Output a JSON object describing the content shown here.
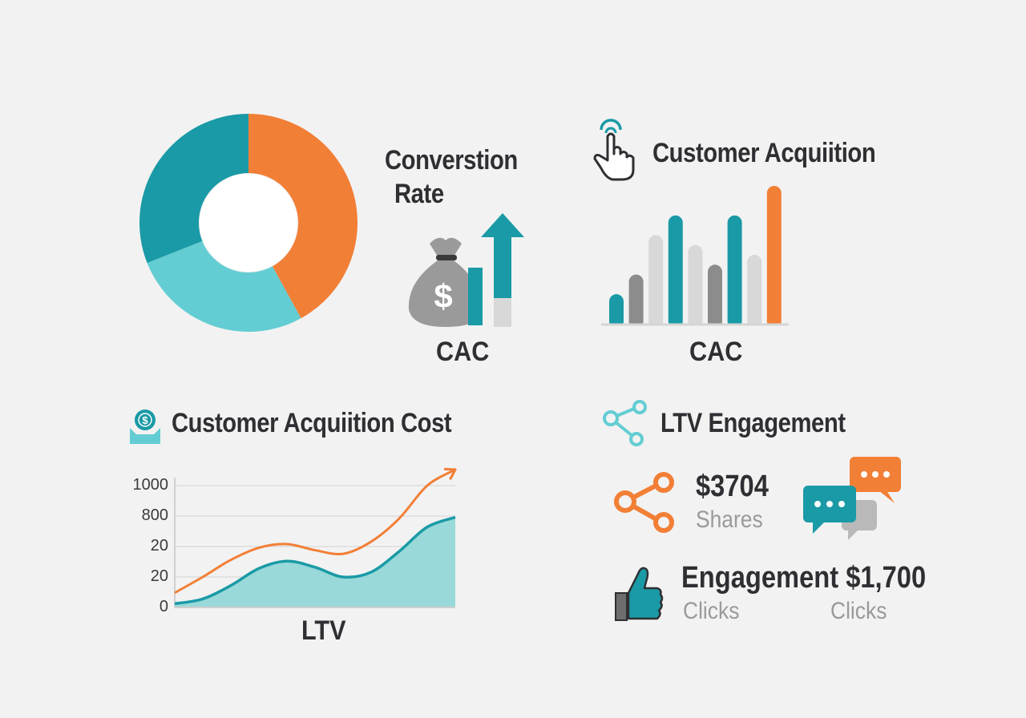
{
  "colors": {
    "orange": "#f27f36",
    "teal": "#1a9aa6",
    "light_teal": "#63cdd3",
    "gray": "#9a9a9a",
    "light_gray": "#d8d8d8",
    "text": "#2f2f33"
  },
  "donut": {
    "title_line1": "Converstion",
    "title_line2": "Rate"
  },
  "money_block": {
    "label": "CAC",
    "icon": "money-bag-icon",
    "arrow_icon": "up-arrow-icon"
  },
  "acquisition": {
    "title": "Customer Acquiition",
    "icon": "pointing-hand-icon",
    "label": "CAC"
  },
  "cost": {
    "title": "Customer Acquiition Cost",
    "icon": "wallet-coin-icon",
    "xlabel": "LTV"
  },
  "ltv": {
    "title": "LTV Engagement",
    "title_icon": "share-network-icon",
    "shares_value": "$3704",
    "shares_label": "Shares",
    "share_icon": "share-icon",
    "chat_icon": "chat-bubbles-icon",
    "engagement_value": "Engagement $1,700",
    "clicks_label_1": "Clicks",
    "clicks_label_2": "Clicks",
    "thumb_icon": "thumbs-up-icon"
  },
  "chart_data": [
    {
      "type": "pie",
      "donut": true,
      "values": [
        42,
        27,
        31
      ],
      "colors": [
        "#f27f36",
        "#63cdd3",
        "#1a9aa6"
      ]
    },
    {
      "type": "bar",
      "values": [
        3,
        5,
        9,
        11,
        8,
        6,
        11,
        7,
        14
      ],
      "colors": [
        "#1a9aa6",
        "#8c8c8c",
        "#d8d8d8",
        "#1a9aa6",
        "#d8d8d8",
        "#8c8c8c",
        "#1a9aa6",
        "#d8d8d8",
        "#f27f36"
      ]
    },
    {
      "type": "line",
      "ytick_labels": [
        "1000",
        "800",
        "20",
        "20",
        "0"
      ],
      "ylim": [
        0,
        1000
      ],
      "x": [
        0,
        1,
        2,
        3,
        4,
        5,
        6,
        7,
        8,
        9,
        10
      ],
      "series": [
        {
          "color": "#f27f36",
          "values": [
            120,
            250,
            390,
            490,
            520,
            470,
            440,
            540,
            730,
            1000,
            1150
          ]
        },
        {
          "color": "#1a9aa6",
          "fill": true,
          "values": [
            30,
            70,
            180,
            320,
            380,
            330,
            250,
            290,
            460,
            660,
            740
          ]
        }
      ]
    }
  ]
}
